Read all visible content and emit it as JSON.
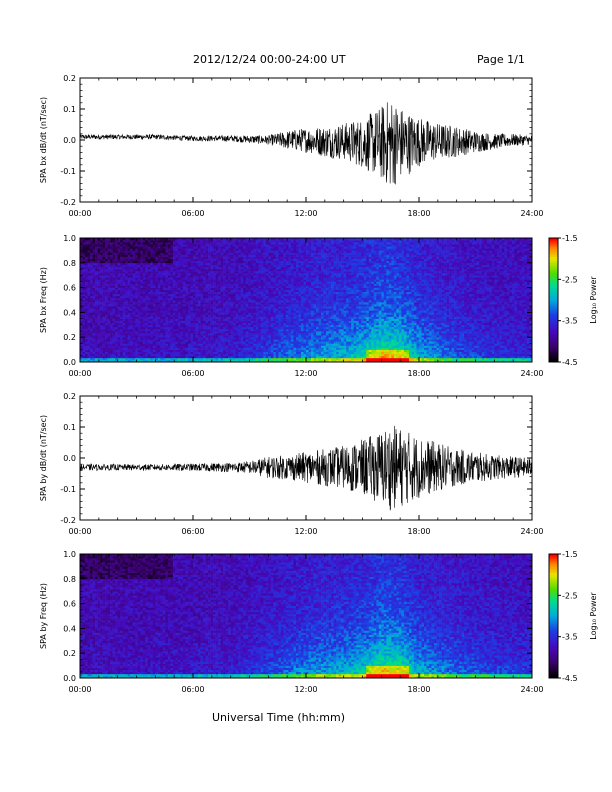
{
  "header": {
    "title": "2012/12/24  00:00-24:00 UT",
    "page_label": "Page 1/1"
  },
  "colors": {
    "trace": "#000000",
    "axis": "#000000",
    "background": "#ffffff"
  },
  "chart_data": [
    {
      "type": "line",
      "ylabel": "SPA bx dB/dt (nT/sec)",
      "ylim": [
        -0.2,
        0.2
      ],
      "yticks": [
        "-0.2",
        "-0.1",
        "0.0",
        "0.1",
        "0.2"
      ],
      "xticks": [
        "00:00",
        "06:00",
        "12:00",
        "18:00",
        "24:00"
      ],
      "xlim_hours": [
        0,
        24
      ],
      "series": [
        {
          "hours": [
            0,
            2,
            4,
            6,
            8,
            10,
            11,
            12,
            13,
            14,
            15,
            16,
            16.5,
            17,
            17.5,
            18,
            19,
            20,
            21,
            22,
            23,
            24
          ],
          "mean": [
            0.01,
            0.01,
            0.01,
            0.005,
            0.005,
            0.0,
            0.0,
            0.0,
            -0.005,
            -0.005,
            -0.01,
            -0.01,
            -0.01,
            -0.01,
            -0.01,
            -0.005,
            -0.005,
            -0.005,
            -0.005,
            -0.005,
            0.0,
            0.0
          ],
          "amplitude": [
            0.008,
            0.008,
            0.008,
            0.008,
            0.01,
            0.015,
            0.03,
            0.04,
            0.05,
            0.06,
            0.08,
            0.12,
            0.15,
            0.12,
            0.1,
            0.08,
            0.06,
            0.05,
            0.035,
            0.025,
            0.02,
            0.015
          ]
        }
      ]
    },
    {
      "type": "heatmap",
      "ylabel": "SPA bx Freq (Hz)",
      "ylim": [
        0.0,
        1.0
      ],
      "yticks": [
        "0.0",
        "0.2",
        "0.4",
        "0.6",
        "0.8",
        "1.0"
      ],
      "xticks": [
        "00:00",
        "06:00",
        "12:00",
        "18:00",
        "24:00"
      ],
      "colorbar": {
        "label": "Log₁₀ Power",
        "range": [
          -4.5,
          -1.5
        ],
        "ticks": [
          "-1.5",
          "-2.5",
          "-3.5",
          "-4.5"
        ]
      },
      "activity_profile": {
        "hours": [
          0,
          4,
          8,
          10,
          12,
          14,
          15,
          16,
          17,
          18,
          20,
          22,
          24
        ],
        "level": [
          0.05,
          0.08,
          0.15,
          0.3,
          0.5,
          0.6,
          0.7,
          0.9,
          0.85,
          0.6,
          0.35,
          0.25,
          0.2
        ]
      }
    },
    {
      "type": "line",
      "ylabel": "SPA by dB/dt (nT/sec)",
      "ylim": [
        -0.2,
        0.2
      ],
      "yticks": [
        "-0.2",
        "-0.1",
        "0.0",
        "0.1",
        "0.2"
      ],
      "xticks": [
        "00:00",
        "06:00",
        "12:00",
        "18:00",
        "24:00"
      ],
      "xlim_hours": [
        0,
        24
      ],
      "series": [
        {
          "hours": [
            0,
            2,
            4,
            6,
            8,
            9,
            10,
            11,
            12,
            13,
            14,
            15,
            16,
            16.5,
            17,
            18,
            19,
            20,
            21,
            22,
            23,
            24
          ],
          "mean": [
            -0.03,
            -0.03,
            -0.03,
            -0.03,
            -0.03,
            -0.03,
            -0.03,
            -0.03,
            -0.03,
            -0.03,
            -0.03,
            -0.03,
            -0.03,
            -0.03,
            -0.03,
            -0.03,
            -0.03,
            -0.03,
            -0.03,
            -0.03,
            -0.03,
            -0.03
          ],
          "amplitude": [
            0.01,
            0.01,
            0.01,
            0.012,
            0.015,
            0.02,
            0.035,
            0.04,
            0.05,
            0.06,
            0.07,
            0.09,
            0.12,
            0.14,
            0.13,
            0.1,
            0.08,
            0.06,
            0.05,
            0.04,
            0.035,
            0.03
          ]
        }
      ]
    },
    {
      "type": "heatmap",
      "ylabel": "SPA by Freq (Hz)",
      "ylim": [
        0.0,
        1.0
      ],
      "yticks": [
        "0.0",
        "0.2",
        "0.4",
        "0.6",
        "0.8",
        "1.0"
      ],
      "xticks": [
        "00:00",
        "06:00",
        "12:00",
        "18:00",
        "24:00"
      ],
      "colorbar": {
        "label": "Log₁₀ Power",
        "range": [
          -4.5,
          -1.5
        ],
        "ticks": [
          "-1.5",
          "-2.5",
          "-3.5",
          "-4.5"
        ]
      },
      "activity_profile": {
        "hours": [
          0,
          4,
          8,
          10,
          12,
          14,
          15,
          16,
          17,
          18,
          20,
          22,
          24
        ],
        "level": [
          0.06,
          0.08,
          0.15,
          0.3,
          0.5,
          0.6,
          0.7,
          0.9,
          0.85,
          0.6,
          0.4,
          0.3,
          0.25
        ]
      }
    }
  ],
  "xaxis_label": "Universal Time (hh:mm)"
}
